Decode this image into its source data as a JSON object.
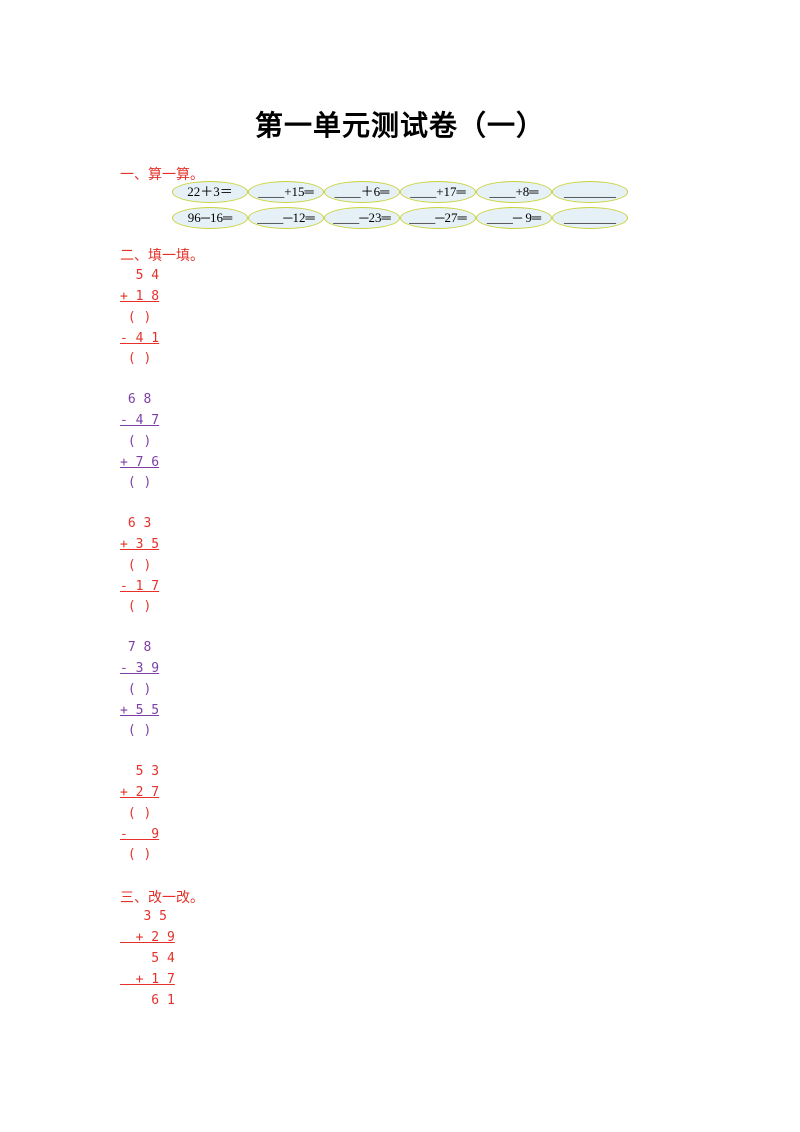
{
  "title": "第一单元测试卷（一）",
  "sections": {
    "one": "一、算一算。",
    "two": "二、填一填。",
    "three": "三、改一改。"
  },
  "calc_rows": [
    [
      "22＋3＝",
      "____+15═",
      "____＋6═",
      "____+17═",
      "____+8═",
      "________"
    ],
    [
      "96─16═",
      "____─12═",
      "____─23═",
      "____─27═",
      "____─ 9═",
      "________"
    ]
  ],
  "fill_problems": [
    {
      "color": "#e4312a",
      "lines": [
        "  5 4",
        "+ 1 8",
        " ( )",
        "- 4 1",
        " ( )"
      ]
    },
    {
      "color": "#7d3fa6",
      "lines": [
        " 6 8",
        "- 4 7",
        " ( )",
        "+ 7 6",
        " ( )"
      ]
    },
    {
      "color": "#e4312a",
      "lines": [
        " 6 3",
        "+ 3 5",
        " ( )",
        "- 1 7",
        " ( )"
      ]
    },
    {
      "color": "#7d3fa6",
      "lines": [
        " 7 8",
        "- 3 9",
        " ( )",
        "+ 5 5",
        " ( )"
      ]
    },
    {
      "color": "#e4312a",
      "lines": [
        "  5 3",
        "+ 2 7",
        " ( )",
        "-   9",
        " ( )"
      ]
    }
  ],
  "correct_lines": [
    "   3 5",
    "  + 2 9",
    "    5 4",
    "  + 1 7",
    "    6 1"
  ]
}
